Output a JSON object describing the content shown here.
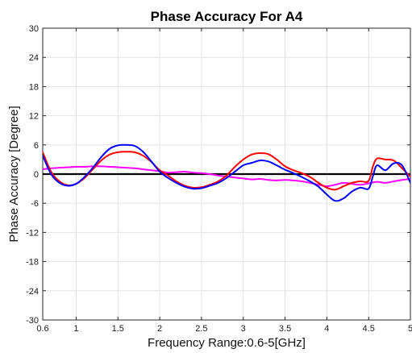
{
  "chart_data": {
    "type": "line",
    "title": "Phase Accuracy For A4",
    "xlabel": "Frequency Range:0.6-5[GHz]",
    "ylabel": "Phase Accuracy [Degree]",
    "xlim": [
      0.6,
      5
    ],
    "ylim": [
      -30,
      30
    ],
    "xticks": [
      0.6,
      1,
      1.5,
      2,
      2.5,
      3,
      3.5,
      4,
      4.5,
      5
    ],
    "yticks": [
      -30,
      -24,
      -18,
      -12,
      -6,
      0,
      6,
      12,
      18,
      24,
      30
    ],
    "grid": true,
    "colors": {
      "red": "#ff0000",
      "blue": "#0000ff",
      "magenta": "#ff00ff",
      "zero": "#000000"
    },
    "series": [
      {
        "color": "#ff0000",
        "x": [
          0.6,
          0.7,
          0.8,
          0.9,
          1.0,
          1.1,
          1.2,
          1.3,
          1.4,
          1.5,
          1.6,
          1.7,
          1.8,
          1.9,
          2.0,
          2.1,
          2.2,
          2.3,
          2.4,
          2.5,
          2.6,
          2.7,
          2.8,
          2.9,
          3.0,
          3.1,
          3.2,
          3.3,
          3.4,
          3.5,
          3.6,
          3.7,
          3.8,
          3.9,
          4.0,
          4.1,
          4.2,
          4.3,
          4.4,
          4.5,
          4.55,
          4.6,
          4.7,
          4.8,
          4.9,
          5.0
        ],
        "y": [
          4.5,
          0.5,
          -1.5,
          -2.3,
          -2.0,
          -0.8,
          1.0,
          2.8,
          4.0,
          4.5,
          4.6,
          4.5,
          3.8,
          2.5,
          0.8,
          -0.3,
          -1.5,
          -2.4,
          -2.8,
          -2.7,
          -2.2,
          -1.5,
          -0.3,
          1.5,
          3.0,
          4.0,
          4.3,
          4.1,
          3.0,
          1.6,
          0.8,
          0.2,
          -0.6,
          -1.8,
          -2.8,
          -3.2,
          -2.5,
          -1.8,
          -1.5,
          -1.4,
          1.5,
          3.2,
          3.0,
          2.8,
          1.2,
          -0.5
        ]
      },
      {
        "color": "#0000ff",
        "x": [
          0.6,
          0.7,
          0.8,
          0.9,
          1.0,
          1.1,
          1.2,
          1.3,
          1.4,
          1.5,
          1.6,
          1.7,
          1.8,
          1.9,
          2.0,
          2.1,
          2.2,
          2.3,
          2.4,
          2.5,
          2.6,
          2.7,
          2.8,
          2.9,
          3.0,
          3.1,
          3.2,
          3.3,
          3.4,
          3.5,
          3.6,
          3.7,
          3.8,
          3.9,
          4.0,
          4.1,
          4.2,
          4.3,
          4.4,
          4.5,
          4.55,
          4.6,
          4.7,
          4.8,
          4.9,
          5.0
        ],
        "y": [
          3.8,
          0.0,
          -1.8,
          -2.4,
          -2.0,
          -0.6,
          1.3,
          3.5,
          5.2,
          5.9,
          6.0,
          5.8,
          4.6,
          2.6,
          0.5,
          -0.8,
          -1.8,
          -2.6,
          -3.0,
          -2.9,
          -2.4,
          -1.8,
          -0.8,
          0.5,
          1.8,
          2.3,
          2.8,
          2.6,
          1.8,
          0.9,
          0.2,
          -0.6,
          -1.5,
          -2.6,
          -4.2,
          -5.5,
          -5.0,
          -3.6,
          -2.8,
          -3.0,
          -0.5,
          1.8,
          0.8,
          2.2,
          1.8,
          -1.8
        ]
      },
      {
        "color": "#ff00ff",
        "x": [
          0.6,
          0.7,
          0.8,
          0.9,
          1.0,
          1.1,
          1.2,
          1.3,
          1.4,
          1.5,
          1.6,
          1.7,
          1.8,
          1.9,
          2.0,
          2.1,
          2.2,
          2.3,
          2.4,
          2.5,
          2.6,
          2.7,
          2.8,
          2.9,
          3.0,
          3.1,
          3.2,
          3.3,
          3.4,
          3.5,
          3.6,
          3.7,
          3.8,
          3.9,
          4.0,
          4.1,
          4.2,
          4.3,
          4.4,
          4.5,
          4.6,
          4.7,
          4.8,
          4.9,
          5.0
        ],
        "y": [
          1.0,
          1.2,
          1.3,
          1.4,
          1.5,
          1.5,
          1.6,
          1.6,
          1.5,
          1.4,
          1.3,
          1.2,
          1.0,
          0.8,
          0.6,
          0.3,
          0.4,
          0.5,
          0.3,
          0.2,
          0.0,
          -0.3,
          -0.5,
          -0.7,
          -0.9,
          -1.1,
          -1.0,
          -1.2,
          -1.3,
          -1.2,
          -1.3,
          -1.5,
          -1.8,
          -2.2,
          -2.5,
          -2.2,
          -1.8,
          -2.0,
          -2.2,
          -1.9,
          -1.6,
          -1.8,
          -1.5,
          -1.2,
          -1.0
        ]
      }
    ],
    "zero_line": {
      "y": 0,
      "color": "#000000"
    }
  }
}
